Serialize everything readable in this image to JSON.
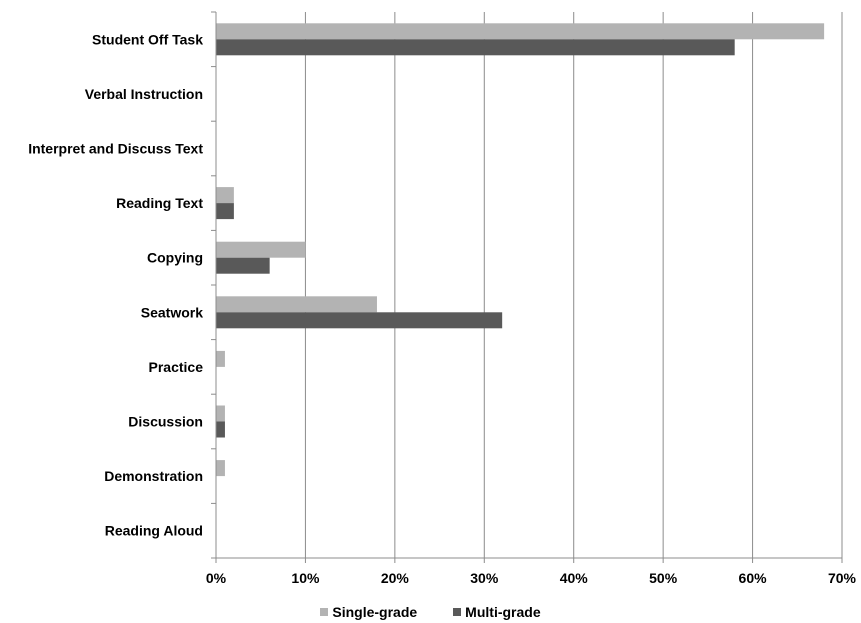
{
  "chart_data": {
    "type": "bar",
    "orientation": "horizontal",
    "categories": [
      "Student Off Task",
      "Verbal Instruction",
      "Interpret and Discuss Text",
      "Reading Text",
      "Copying",
      "Seatwork",
      "Practice",
      "Discussion",
      "Demonstration",
      "Reading Aloud"
    ],
    "series": [
      {
        "name": "Single-grade",
        "color": "#b3b3b3",
        "values": [
          68,
          0,
          0,
          2,
          10,
          18,
          1,
          1,
          1,
          0
        ]
      },
      {
        "name": "Multi-grade",
        "color": "#595959",
        "values": [
          58,
          0,
          0,
          2,
          6,
          32,
          0,
          1,
          0,
          0
        ]
      }
    ],
    "xlim": [
      0,
      70
    ],
    "x_ticks": [
      "0%",
      "10%",
      "20%",
      "30%",
      "40%",
      "50%",
      "60%",
      "70%"
    ],
    "grid": "vertical",
    "legend_position": "bottom"
  }
}
